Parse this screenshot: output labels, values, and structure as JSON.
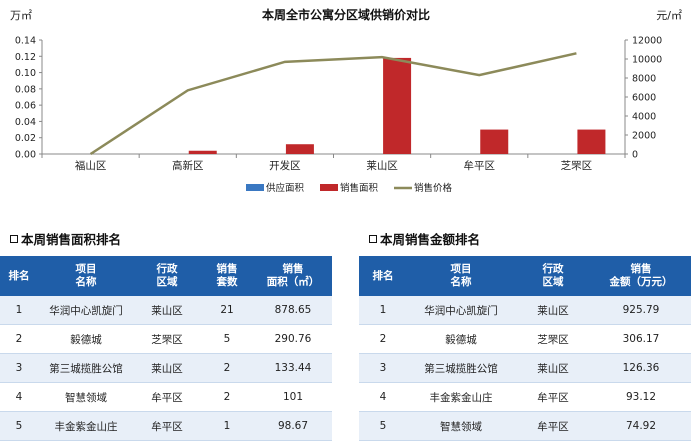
{
  "chart_data": {
    "type": "bar+line",
    "title": "本周全市公寓分区域供销价对比",
    "y_left_unit": "万㎡",
    "y_right_unit": "元/㎡",
    "categories": [
      "福山区",
      "高新区",
      "开发区",
      "莱山区",
      "牟平区",
      "芝罘区"
    ],
    "ylim_left": [
      0,
      0.14
    ],
    "yticks_left": [
      "0.00",
      "0.02",
      "0.04",
      "0.06",
      "0.08",
      "0.10",
      "0.12",
      "0.14"
    ],
    "ylim_right": [
      0,
      12000
    ],
    "yticks_right": [
      "0",
      "2000",
      "4000",
      "6000",
      "8000",
      "10000",
      "12000"
    ],
    "series": [
      {
        "name": "供应面积",
        "type": "bar",
        "axis": "left",
        "color": "#3a78c2",
        "values": [
          0,
          0,
          0,
          0,
          0,
          0
        ]
      },
      {
        "name": "销售面积",
        "type": "bar",
        "axis": "left",
        "color": "#c0282a",
        "values": [
          0,
          0.004,
          0.012,
          0.118,
          0.03,
          0.03
        ]
      },
      {
        "name": "销售价格",
        "type": "line",
        "axis": "right",
        "color": "#8c8a5a",
        "values": [
          0,
          6700,
          9700,
          10200,
          8300,
          10600
        ]
      }
    ],
    "legend_position": "bottom"
  },
  "area_section": {
    "title": "本周销售面积排名",
    "headers": [
      "排名",
      "项目\n名称",
      "行政\n区域",
      "销售\n套数",
      "销售\n面积（㎡）"
    ],
    "rows": [
      [
        "1",
        "华润中心凯旋门",
        "莱山区",
        "21",
        "878.65"
      ],
      [
        "2",
        "毅德城",
        "芝罘区",
        "5",
        "290.76"
      ],
      [
        "3",
        "第三城揽胜公馆",
        "莱山区",
        "2",
        "133.44"
      ],
      [
        "4",
        "智慧领域",
        "牟平区",
        "2",
        "101"
      ],
      [
        "5",
        "丰金紫金山庄",
        "牟平区",
        "1",
        "98.67"
      ]
    ]
  },
  "amount_section": {
    "title": "本周销售金额排名",
    "headers": [
      "排名",
      "项目\n名称",
      "行政\n区域",
      "销售\n金额（万元）"
    ],
    "rows": [
      [
        "1",
        "华润中心凯旋门",
        "莱山区",
        "925.79"
      ],
      [
        "2",
        "毅德城",
        "芝罘区",
        "306.17"
      ],
      [
        "3",
        "第三城揽胜公馆",
        "莱山区",
        "126.36"
      ],
      [
        "4",
        "丰金紫金山庄",
        "牟平区",
        "93.12"
      ],
      [
        "5",
        "智慧领域",
        "牟平区",
        "74.92"
      ]
    ]
  }
}
